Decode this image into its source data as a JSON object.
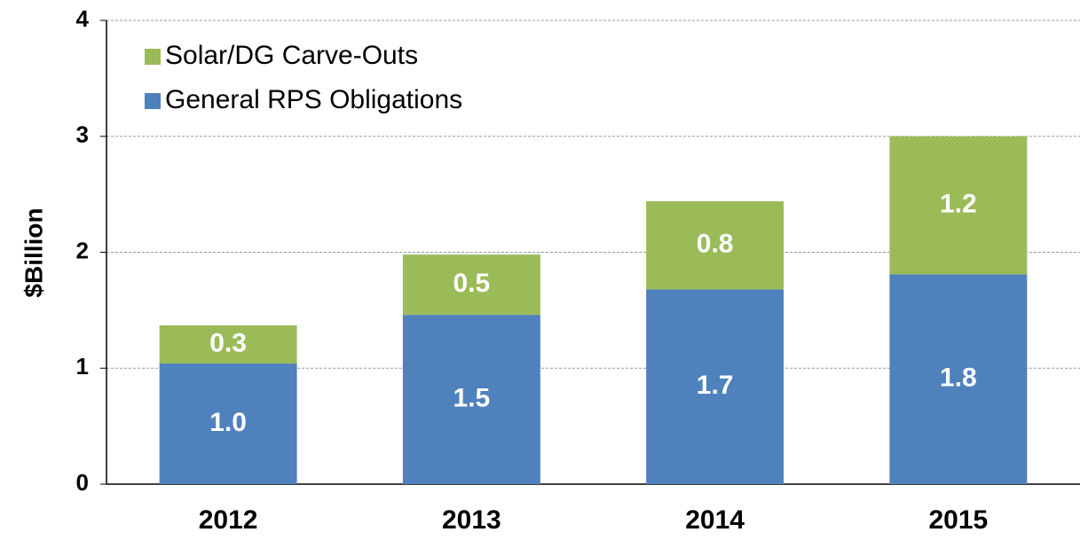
{
  "chart_data": {
    "type": "stacked_bar",
    "y_label": "$Billion",
    "categories": [
      "2012",
      "2013",
      "2014",
      "2015"
    ],
    "series": [
      {
        "name": "General RPS Obligations",
        "color": "#4f81bd",
        "values": [
          1.04,
          1.46,
          1.68,
          1.81
        ],
        "value_labels": [
          "1.0",
          "1.5",
          "1.7",
          "1.8"
        ]
      },
      {
        "name": "Solar/DG Carve-Outs",
        "color": "#9bbb59",
        "values": [
          0.33,
          0.52,
          0.76,
          1.19
        ],
        "value_labels": [
          "0.3",
          "0.5",
          "0.8",
          "1.2"
        ]
      }
    ],
    "ylim": [
      0,
      4
    ],
    "yticks": [
      0,
      1,
      2,
      3,
      4
    ],
    "grid": true,
    "legend": "top-left"
  }
}
